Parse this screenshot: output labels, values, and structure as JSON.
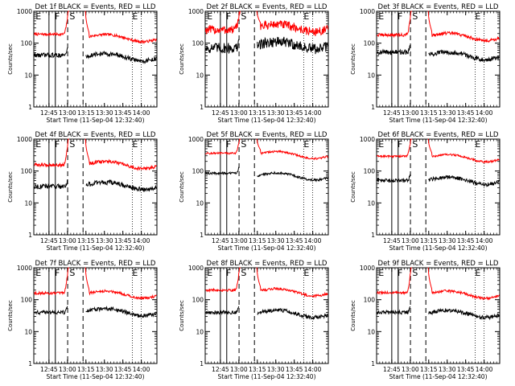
{
  "figure": {
    "start_time_label": "Start Time (11-Sep-04 12:32:40)"
  },
  "chart_data": [
    {
      "type": "line",
      "title": "Det 1f BLACK = Events, RED = LLD",
      "ylabel": "Counts/sec",
      "xlabel": "Start Time (11-Sep-04 12:32:40)",
      "yscale": "log",
      "ylim": [
        1,
        1000
      ],
      "ytick_labels": [
        "1",
        "10",
        "100",
        "1000"
      ],
      "xtick_labels": [
        "12:45",
        "13:00",
        "13:15",
        "13:30",
        "13:45",
        "14:00"
      ],
      "xticks_min": [
        12.33,
        27.33,
        42.33,
        57.33,
        72.33,
        87.33
      ],
      "xlim": [
        0,
        100
      ],
      "markers": [
        {
          "label": "E",
          "x": 1.5
        },
        {
          "label": "F",
          "x": 17
        },
        {
          "label": "S",
          "x": 29
        },
        {
          "label": "E",
          "x": 80
        }
      ],
      "solid_lines": [
        12.33,
        17.5
      ],
      "dashed_lines": [
        27.5,
        40
      ],
      "dotted_lines": [
        80,
        87.33
      ],
      "gap": [
        29,
        42
      ],
      "series": [
        {
          "color": "#ff0000",
          "base": 190,
          "noise": 0.08,
          "rise": [
            24,
            28
          ],
          "fall": [
            41.5,
            45
          ],
          "end": 160
        },
        {
          "color": "#000000",
          "base": 42,
          "noise": 0.14,
          "rise": [
            25,
            28
          ],
          "end": 40
        }
      ]
    },
    {
      "type": "line",
      "title": "Det 2f BLACK = Events, RED = LLD",
      "ylabel": "Counts/sec",
      "xlabel": "Start Time (11-Sep-04 12:32:40)",
      "yscale": "log",
      "ylim": [
        1,
        1000
      ],
      "ytick_labels": [
        "1",
        "10",
        "100",
        "1000"
      ],
      "xtick_labels": [
        "12:45",
        "13:00",
        "13:15",
        "13:30",
        "13:45",
        "14:00"
      ],
      "xticks_min": [
        12.33,
        27.33,
        42.33,
        57.33,
        72.33,
        87.33
      ],
      "xlim": [
        0,
        100
      ],
      "markers": [
        {
          "label": "E",
          "x": 1.5
        },
        {
          "label": "F",
          "x": 17
        },
        {
          "label": "S",
          "x": 29
        },
        {
          "label": "E",
          "x": 80
        }
      ],
      "solid_lines": [
        12.33,
        17.5
      ],
      "dashed_lines": [
        27.5,
        40
      ],
      "dotted_lines": [
        80,
        87.33
      ],
      "gap": [
        29,
        42
      ],
      "series": [
        {
          "color": "#ff0000",
          "base": 260,
          "noise": 0.28,
          "rise": [
            24,
            28
          ],
          "fall": [
            41.5,
            45
          ],
          "end": 330
        },
        {
          "color": "#000000",
          "base": 70,
          "noise": 0.34,
          "rise": [
            25,
            28
          ],
          "end": 95
        }
      ]
    },
    {
      "type": "line",
      "title": "Det 3f BLACK = Events, RED = LLD",
      "ylabel": "Counts/sec",
      "xlabel": "Start Time (11-Sep-04 12:32:40)",
      "yscale": "log",
      "ylim": [
        1,
        1000
      ],
      "ytick_labels": [
        "1",
        "10",
        "100",
        "1000"
      ],
      "xtick_labels": [
        "12:45",
        "13:00",
        "13:15",
        "13:30",
        "13:45",
        "14:00"
      ],
      "xticks_min": [
        12.33,
        27.33,
        42.33,
        57.33,
        72.33,
        87.33
      ],
      "xlim": [
        0,
        100
      ],
      "markers": [
        {
          "label": "E",
          "x": 1.5
        },
        {
          "label": "F",
          "x": 17
        },
        {
          "label": "S",
          "x": 29
        },
        {
          "label": "E",
          "x": 80
        }
      ],
      "solid_lines": [
        12.33,
        17.5
      ],
      "dashed_lines": [
        27.5,
        40
      ],
      "dotted_lines": [
        80,
        87.33
      ],
      "gap": [
        29,
        42
      ],
      "series": [
        {
          "color": "#ff0000",
          "base": 180,
          "noise": 0.1,
          "rise": [
            24,
            28
          ],
          "fall": [
            41.5,
            45
          ],
          "end": 175
        },
        {
          "color": "#000000",
          "base": 52,
          "noise": 0.15,
          "rise": [
            25,
            28
          ],
          "end": 45
        }
      ]
    },
    {
      "type": "line",
      "title": "Det 4f BLACK = Events, RED = LLD",
      "ylabel": "Counts/sec",
      "xlabel": "Start Time (11-Sep-04 12:32:40)",
      "yscale": "log",
      "ylim": [
        1,
        1000
      ],
      "ytick_labels": [
        "1",
        "10",
        "100",
        "1000"
      ],
      "xtick_labels": [
        "12:45",
        "13:00",
        "13:15",
        "13:30",
        "13:45",
        "14:00"
      ],
      "xticks_min": [
        12.33,
        27.33,
        42.33,
        57.33,
        72.33,
        87.33
      ],
      "xlim": [
        0,
        100
      ],
      "markers": [
        {
          "label": "E",
          "x": 1.5
        },
        {
          "label": "F",
          "x": 17
        },
        {
          "label": "S",
          "x": 29
        },
        {
          "label": "E",
          "x": 80
        }
      ],
      "solid_lines": [
        12.33,
        17.5
      ],
      "dashed_lines": [
        27.5,
        40
      ],
      "dotted_lines": [
        80,
        87.33
      ],
      "gap": [
        29,
        42
      ],
      "series": [
        {
          "color": "#ff0000",
          "base": 155,
          "noise": 0.1,
          "rise": [
            24,
            28
          ],
          "fall": [
            41.5,
            45
          ],
          "end": 170
        },
        {
          "color": "#000000",
          "base": 33,
          "noise": 0.15,
          "rise": [
            25,
            28
          ],
          "end": 38
        }
      ]
    },
    {
      "type": "line",
      "title": "Det 5f BLACK = Events, RED = LLD",
      "ylabel": "Counts/sec",
      "xlabel": "Start Time (11-Sep-04 12:32:40)",
      "yscale": "log",
      "ylim": [
        1,
        1000
      ],
      "ytick_labels": [
        "1",
        "10",
        "100",
        "1000"
      ],
      "xtick_labels": [
        "12:45",
        "13:00",
        "13:15",
        "13:30",
        "13:45",
        "14:00"
      ],
      "xticks_min": [
        12.33,
        27.33,
        42.33,
        57.33,
        72.33,
        87.33
      ],
      "xlim": [
        0,
        100
      ],
      "markers": [
        {
          "label": "E",
          "x": 1.5
        },
        {
          "label": "F",
          "x": 17
        },
        {
          "label": "S",
          "x": 29
        },
        {
          "label": "E",
          "x": 80
        }
      ],
      "solid_lines": [
        12.33,
        17.5
      ],
      "dashed_lines": [
        27.5,
        40
      ],
      "dotted_lines": [
        80,
        87.33
      ],
      "gap": [
        29,
        42
      ],
      "series": [
        {
          "color": "#ff0000",
          "base": 360,
          "noise": 0.06,
          "rise": [
            24,
            28
          ],
          "fall": [
            41.5,
            45
          ],
          "end": 350
        },
        {
          "color": "#000000",
          "base": 85,
          "noise": 0.07,
          "rise": [
            25,
            28
          ],
          "end": 75
        }
      ]
    },
    {
      "type": "line",
      "title": "Det 6f BLACK = Events, RED = LLD",
      "ylabel": "Counts/sec",
      "xlabel": "Start Time (11-Sep-04 12:32:40)",
      "yscale": "log",
      "ylim": [
        1,
        1000
      ],
      "ytick_labels": [
        "1",
        "10",
        "100",
        "1000"
      ],
      "xtick_labels": [
        "12:45",
        "13:00",
        "13:15",
        "13:30",
        "13:45",
        "14:00"
      ],
      "xticks_min": [
        12.33,
        27.33,
        42.33,
        57.33,
        72.33,
        87.33
      ],
      "xlim": [
        0,
        100
      ],
      "markers": [
        {
          "label": "E",
          "x": 1.5
        },
        {
          "label": "F",
          "x": 17
        },
        {
          "label": "S",
          "x": 29
        },
        {
          "label": "E",
          "x": 80
        }
      ],
      "solid_lines": [
        12.33,
        17.5
      ],
      "dashed_lines": [
        27.5,
        40
      ],
      "dotted_lines": [
        80,
        87.33
      ],
      "gap": [
        29,
        42
      ],
      "series": [
        {
          "color": "#ff0000",
          "base": 290,
          "noise": 0.06,
          "rise": [
            24,
            28
          ],
          "fall": [
            41.5,
            45
          ],
          "end": 280
        },
        {
          "color": "#000000",
          "base": 50,
          "noise": 0.12,
          "rise": [
            25,
            28
          ],
          "end": 55
        }
      ]
    },
    {
      "type": "line",
      "title": "Det 7f BLACK = Events, RED = LLD",
      "ylabel": "Counts/sec",
      "xlabel": "Start Time (11-Sep-04 12:32:40)",
      "yscale": "log",
      "ylim": [
        1,
        1000
      ],
      "ytick_labels": [
        "1",
        "10",
        "100",
        "1000"
      ],
      "xtick_labels": [
        "12:45",
        "13:00",
        "13:15",
        "13:30",
        "13:45",
        "14:00"
      ],
      "xticks_min": [
        12.33,
        27.33,
        42.33,
        57.33,
        72.33,
        87.33
      ],
      "xlim": [
        0,
        100
      ],
      "markers": [
        {
          "label": "E",
          "x": 1.5
        },
        {
          "label": "F",
          "x": 17
        },
        {
          "label": "S",
          "x": 29
        },
        {
          "label": "E",
          "x": 80
        }
      ],
      "solid_lines": [
        12.33,
        17.5
      ],
      "dashed_lines": [
        27.5,
        40
      ],
      "dotted_lines": [
        80,
        87.33
      ],
      "gap": [
        29,
        42
      ],
      "series": [
        {
          "color": "#ff0000",
          "base": 160,
          "noise": 0.08,
          "rise": [
            24,
            28
          ],
          "fall": [
            41.5,
            45
          ],
          "end": 160
        },
        {
          "color": "#000000",
          "base": 40,
          "noise": 0.12,
          "rise": [
            25,
            28
          ],
          "end": 45
        }
      ]
    },
    {
      "type": "line",
      "title": "Det 8f BLACK = Events, RED = LLD",
      "ylabel": "Counts/sec",
      "xlabel": "Start Time (11-Sep-04 12:32:40)",
      "yscale": "log",
      "ylim": [
        1,
        1000
      ],
      "ytick_labels": [
        "1",
        "10",
        "100",
        "1000"
      ],
      "xtick_labels": [
        "12:45",
        "13:00",
        "13:15",
        "13:30",
        "13:45",
        "14:00"
      ],
      "xticks_min": [
        12.33,
        27.33,
        42.33,
        57.33,
        72.33,
        87.33
      ],
      "xlim": [
        0,
        100
      ],
      "markers": [
        {
          "label": "E",
          "x": 1.5
        },
        {
          "label": "F",
          "x": 17
        },
        {
          "label": "S",
          "x": 29
        },
        {
          "label": "E",
          "x": 80
        }
      ],
      "solid_lines": [
        12.33,
        17.5
      ],
      "dashed_lines": [
        27.5,
        40
      ],
      "dotted_lines": [
        80,
        87.33
      ],
      "gap": [
        29,
        42
      ],
      "series": [
        {
          "color": "#ff0000",
          "base": 200,
          "noise": 0.08,
          "rise": [
            24,
            28
          ],
          "fall": [
            41.5,
            45
          ],
          "end": 190
        },
        {
          "color": "#000000",
          "base": 40,
          "noise": 0.12,
          "rise": [
            25,
            28
          ],
          "end": 40
        }
      ]
    },
    {
      "type": "line",
      "title": "Det 9f BLACK = Events, RED = LLD",
      "ylabel": "Counts/sec",
      "xlabel": "Start Time (11-Sep-04 12:32:40)",
      "yscale": "log",
      "ylim": [
        1,
        1000
      ],
      "ytick_labels": [
        "1",
        "10",
        "100",
        "1000"
      ],
      "xtick_labels": [
        "12:45",
        "13:00",
        "13:15",
        "13:30",
        "13:45",
        "14:00"
      ],
      "xticks_min": [
        12.33,
        27.33,
        42.33,
        57.33,
        72.33,
        87.33
      ],
      "xlim": [
        0,
        100
      ],
      "markers": [
        {
          "label": "E",
          "x": 1.5
        },
        {
          "label": "F",
          "x": 17
        },
        {
          "label": "S",
          "x": 29
        },
        {
          "label": "E",
          "x": 80
        }
      ],
      "solid_lines": [
        12.33,
        17.5
      ],
      "dashed_lines": [
        27.5,
        40
      ],
      "dotted_lines": [
        80,
        87.33
      ],
      "gap": [
        29,
        42
      ],
      "series": [
        {
          "color": "#ff0000",
          "base": 165,
          "noise": 0.08,
          "rise": [
            24,
            28
          ],
          "fall": [
            41.5,
            45
          ],
          "end": 160
        },
        {
          "color": "#000000",
          "base": 40,
          "noise": 0.12,
          "rise": [
            25,
            28
          ],
          "end": 40
        }
      ]
    }
  ]
}
